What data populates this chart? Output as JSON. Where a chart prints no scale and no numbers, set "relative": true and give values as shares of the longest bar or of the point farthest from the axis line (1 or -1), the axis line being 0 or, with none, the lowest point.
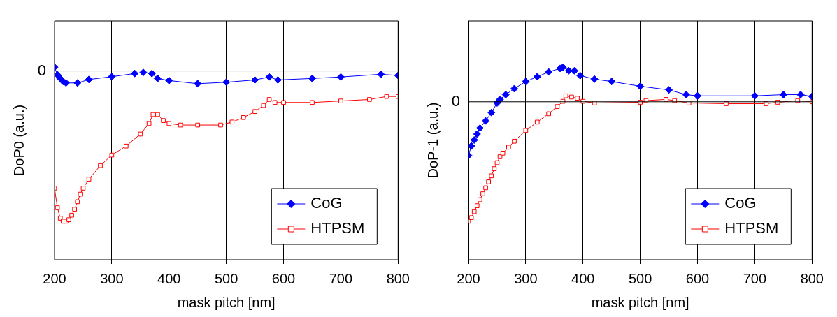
{
  "chart_data": [
    {
      "type": "line",
      "xlabel": "mask pitch [nm]",
      "ylabel": "DoP0 (a.u.)",
      "relative": true,
      "xlim": [
        200,
        800
      ],
      "xticks": [
        200,
        300,
        400,
        500,
        600,
        700,
        800
      ],
      "grid": "x",
      "legend": "bottom right",
      "line_style": "solid",
      "ref_lines": [
        {
          "axis": "y",
          "value": 0,
          "label": "0",
          "color": "#000000"
        }
      ],
      "series": [
        {
          "name": "CoG",
          "color": "#0000ff",
          "marker": "diamond",
          "x": [
            200,
            205,
            210,
            215,
            220,
            240,
            260,
            300,
            340,
            355,
            370,
            380,
            400,
            450,
            500,
            550,
            575,
            590,
            650,
            700,
            770,
            800
          ],
          "values": [
            0.025,
            -0.025,
            -0.05,
            -0.07,
            -0.08,
            -0.08,
            -0.057,
            -0.038,
            -0.017,
            -0.01,
            -0.017,
            -0.05,
            -0.064,
            -0.085,
            -0.075,
            -0.06,
            -0.04,
            -0.06,
            -0.05,
            -0.04,
            -0.022,
            -0.03
          ]
        },
        {
          "name": "HTPSM",
          "color": "#ff0000",
          "marker": "square",
          "x": [
            200,
            205,
            210,
            215,
            220,
            225,
            230,
            235,
            240,
            245,
            250,
            260,
            280,
            300,
            325,
            350,
            365,
            372,
            380,
            390,
            400,
            420,
            450,
            490,
            510,
            530,
            550,
            565,
            575,
            585,
            600,
            650,
            700,
            750,
            780,
            800
          ],
          "values": [
            -0.78,
            -0.91,
            -0.98,
            -1,
            -1,
            -0.99,
            -0.96,
            -0.92,
            -0.87,
            -0.82,
            -0.78,
            -0.72,
            -0.63,
            -0.56,
            -0.5,
            -0.42,
            -0.35,
            -0.29,
            -0.29,
            -0.33,
            -0.35,
            -0.36,
            -0.36,
            -0.36,
            -0.34,
            -0.31,
            -0.27,
            -0.23,
            -0.19,
            -0.21,
            -0.21,
            -0.21,
            -0.2,
            -0.19,
            -0.17,
            -0.17
          ]
        }
      ]
    },
    {
      "type": "line",
      "xlabel": "mask pitch [nm]",
      "ylabel": "DoP-1 (a.u.)",
      "relative": true,
      "xlim": [
        200,
        800
      ],
      "xticks": [
        200,
        300,
        400,
        500,
        600,
        700,
        800
      ],
      "grid": "x",
      "legend": "bottom right",
      "line_style": "solid",
      "ref_lines": [
        {
          "axis": "y",
          "value": 0,
          "label": "0",
          "color": "#000000"
        }
      ],
      "series": [
        {
          "name": "CoG",
          "color": "#0000ff",
          "marker": "diamond",
          "x": [
            200,
            205,
            210,
            215,
            220,
            230,
            240,
            250,
            255,
            265,
            280,
            300,
            320,
            340,
            360,
            365,
            375,
            385,
            395,
            420,
            450,
            500,
            550,
            580,
            600,
            700,
            750,
            780,
            800
          ],
          "values": [
            -0.45,
            -0.37,
            -0.32,
            -0.27,
            -0.22,
            -0.16,
            -0.09,
            -0.01,
            0.02,
            0.06,
            0.11,
            0.17,
            0.21,
            0.25,
            0.28,
            0.29,
            0.26,
            0.26,
            0.22,
            0.19,
            0.17,
            0.13,
            0.1,
            0.06,
            0.05,
            0.05,
            0.06,
            0.06,
            0.045
          ]
        },
        {
          "name": "HTPSM",
          "color": "#ff0000",
          "marker": "square",
          "x": [
            200,
            205,
            210,
            215,
            220,
            225,
            230,
            235,
            240,
            245,
            250,
            255,
            260,
            270,
            280,
            300,
            320,
            340,
            355,
            365,
            370,
            380,
            390,
            400,
            420,
            500,
            510,
            545,
            560,
            585,
            650,
            720,
            740,
            775,
            800
          ],
          "values": [
            -1,
            -0.97,
            -0.92,
            -0.87,
            -0.82,
            -0.77,
            -0.72,
            -0.67,
            -0.62,
            -0.56,
            -0.51,
            -0.46,
            -0.43,
            -0.38,
            -0.33,
            -0.24,
            -0.17,
            -0.1,
            -0.04,
            0.004,
            0.05,
            0.04,
            0.03,
            0.004,
            -0.01,
            -0.004,
            0.01,
            0.02,
            0.01,
            -0.01,
            -0.016,
            -0.016,
            -0.004,
            0.01,
            0
          ]
        }
      ]
    }
  ]
}
